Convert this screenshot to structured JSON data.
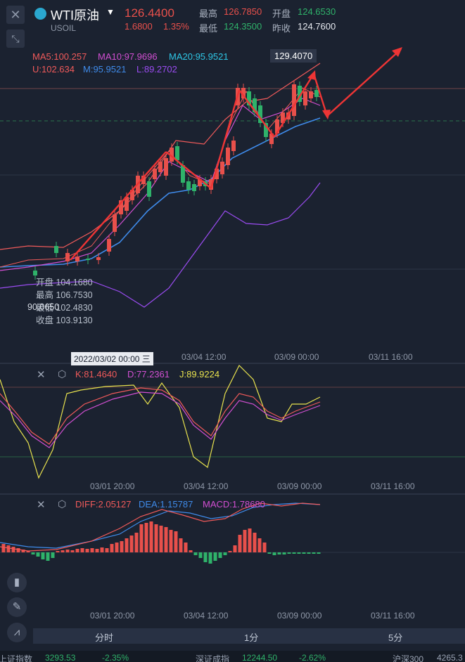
{
  "header": {
    "symbol_name": "WTI原油",
    "symbol_code": "USOIL",
    "last_price": "126.4400",
    "change": "1.6800",
    "change_pct": "1.35%",
    "high_label": "最高",
    "high": "126.7850",
    "low_label": "最低",
    "low": "124.3500",
    "open_label": "开盘",
    "open": "124.6530",
    "prev_close_label": "昨收",
    "prev_close": "124.7600"
  },
  "main_chart": {
    "ma5": "MA5:100.257",
    "ma10": "MA10:97.9696",
    "ma20": "MA20:95.9521",
    "boll_u": "U:102.634",
    "boll_m": "M:95.9521",
    "boll_l": "L:89.2702",
    "price_tag": "129.4070",
    "crosshair_y": "90.0650",
    "tooltip": {
      "open": "开盘 104.1680",
      "high": "最高 106.7530",
      "low": "最低 102.4830",
      "close": "收盘 103.9130"
    },
    "time_labels": [
      "2022/03/02 00:00 三",
      "03/04 12:00",
      "03/09 00:00",
      "03/11 16:00"
    ]
  },
  "kdj": {
    "k": "K:81.4640",
    "d": "D:77.2361",
    "j": "J:89.9224",
    "time_labels": [
      "03/01 20:00",
      "03/04 12:00",
      "03/09 00:00",
      "03/11 16:00"
    ]
  },
  "macd": {
    "diff": "DIFF:2.05127",
    "dea": "DEA:1.15787",
    "macd": "MACD:1.78680",
    "time_labels": [
      "03/01 20:00",
      "03/04 12:00",
      "03/09 00:00",
      "03/11 16:00"
    ]
  },
  "tabs": [
    "分时",
    "1分",
    "5分"
  ],
  "ticker": [
    {
      "name": "上证指数",
      "value": "3293.53",
      "pct": "-2.35%"
    },
    {
      "name": "深证成指",
      "value": "12244.50",
      "pct": "-2.62%"
    },
    {
      "name": "沪深300",
      "value": "4265.3"
    }
  ],
  "colors": {
    "up": "#e8504b",
    "down": "#2fb26a",
    "ma5": "#f05a5a",
    "ma10": "#d24fd2",
    "ma20": "#2ec7e6",
    "mid": "#3f8bea",
    "lower": "#9b4cf2",
    "arrow": "#ee3535"
  },
  "icons": [
    "close-icon",
    "collapse-icon",
    "settings-icon",
    "candle-icon",
    "pen-icon",
    "indicator-icon"
  ]
}
